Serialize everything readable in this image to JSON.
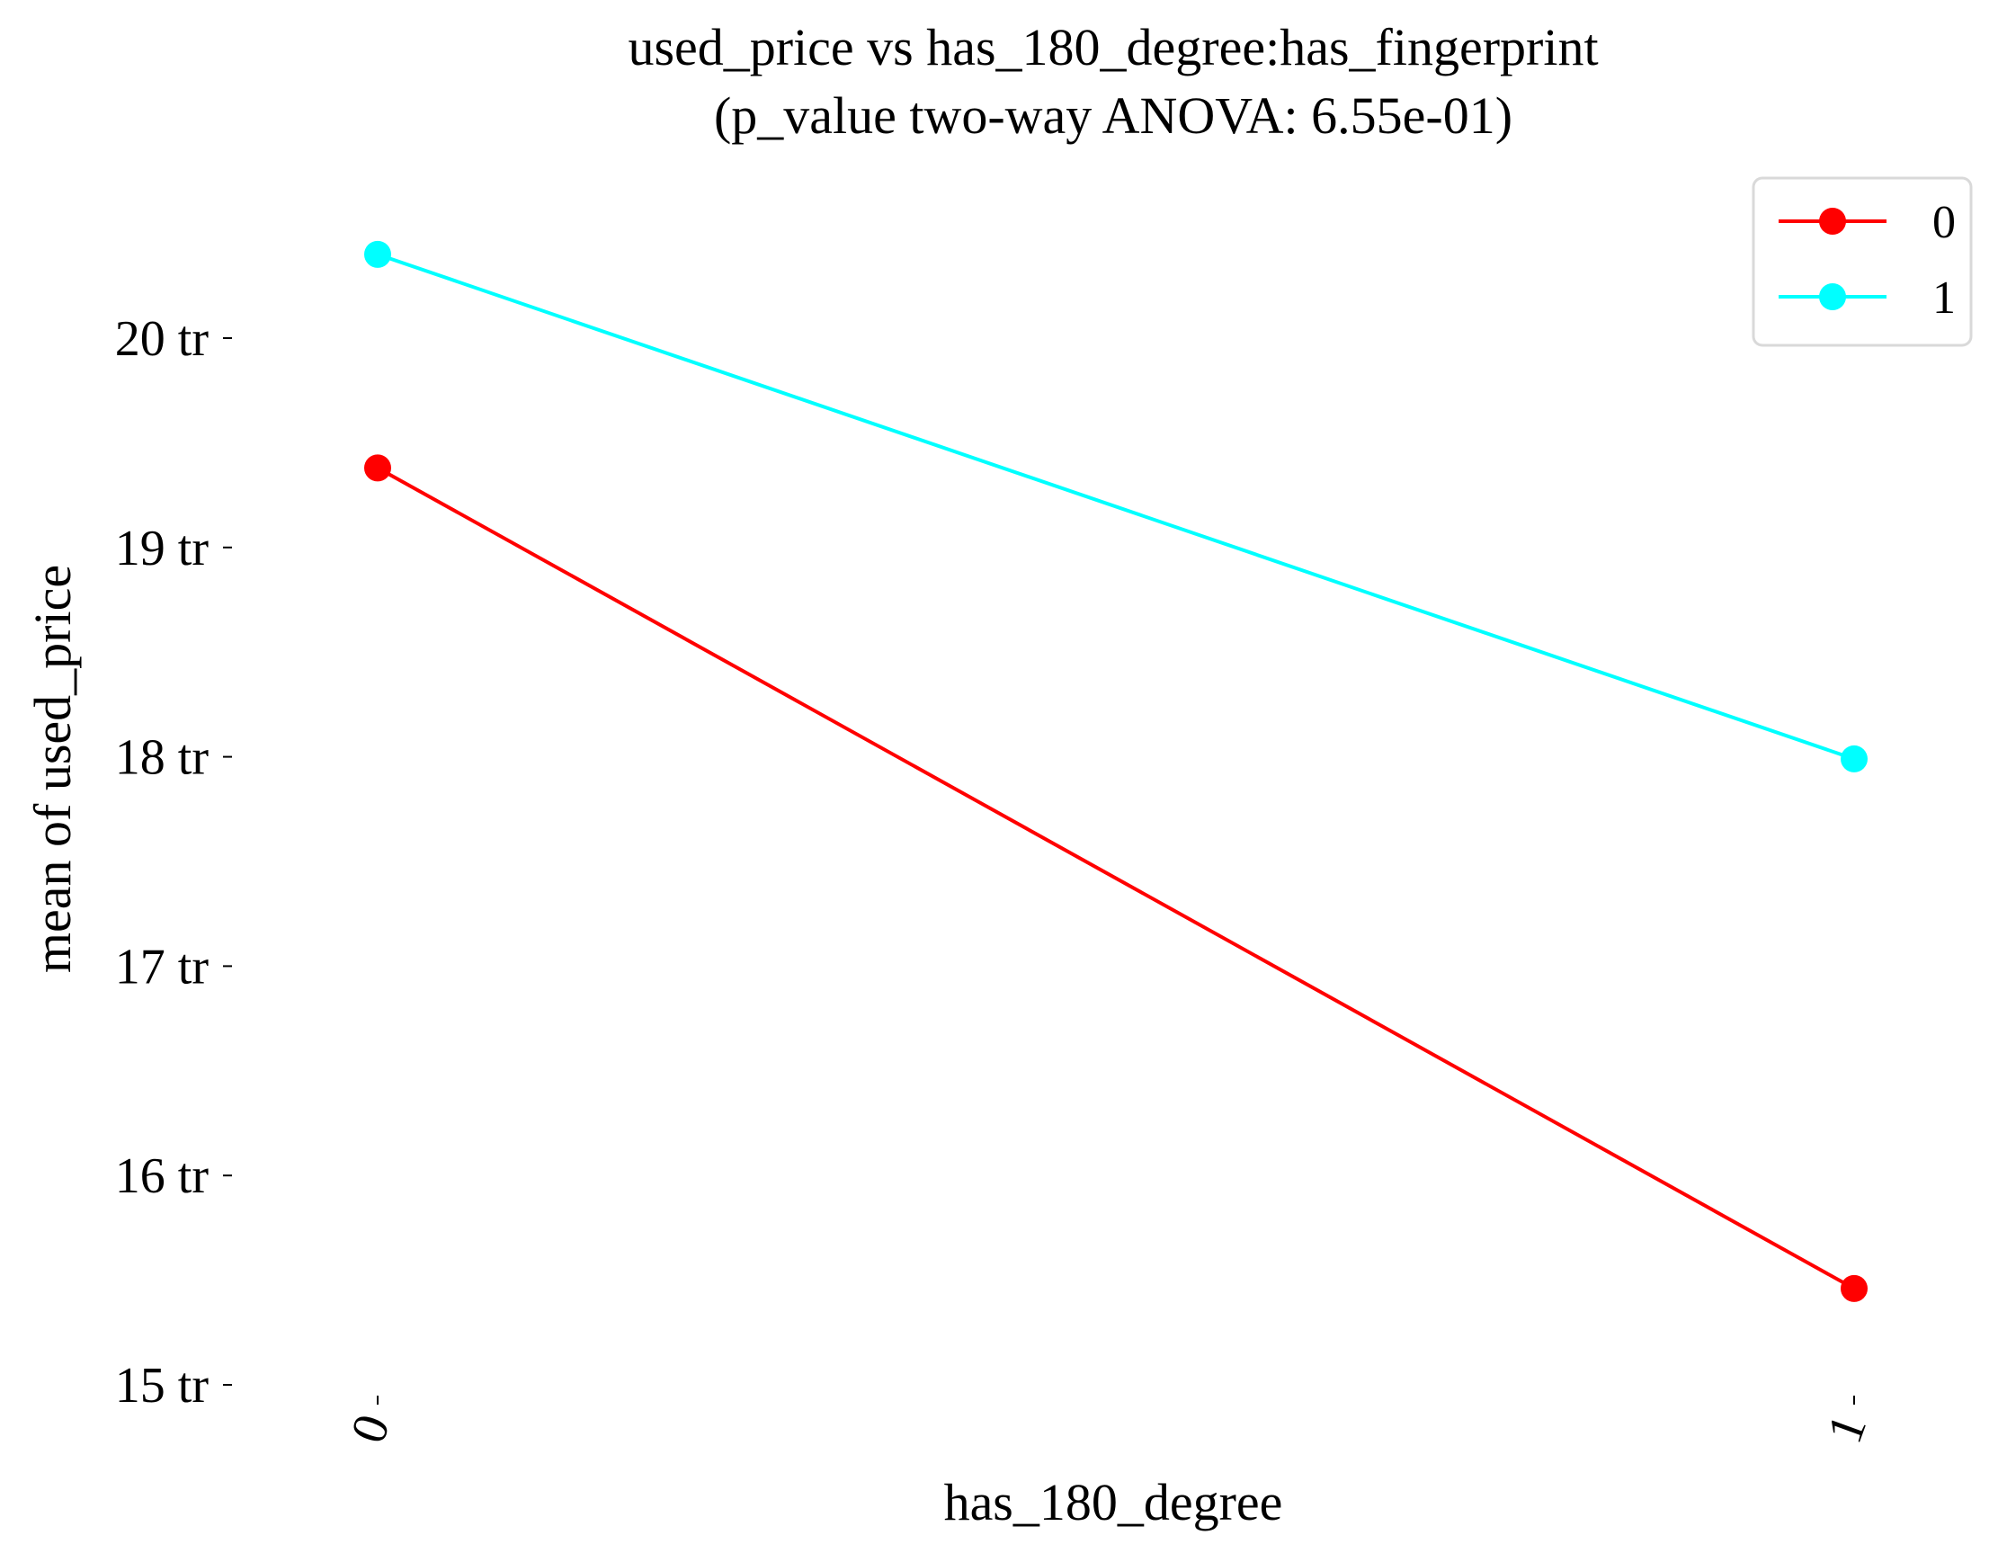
{
  "chart_data": {
    "type": "line",
    "title": "used_price vs has_180_degree:has_fingerprint",
    "subtitle": "(p_value two-way ANOVA: 6.55e-01)",
    "xlabel": "has_180_degree",
    "ylabel": "mean of used_price",
    "categories": [
      "0",
      "1"
    ],
    "y_ticks": [
      {
        "value": 15,
        "label": "15 tr"
      },
      {
        "value": 16,
        "label": "16 tr"
      },
      {
        "value": 17,
        "label": "17 tr"
      },
      {
        "value": 18,
        "label": "18 tr"
      },
      {
        "value": 19,
        "label": "19 tr"
      },
      {
        "value": 20,
        "label": "20 tr"
      }
    ],
    "ylim": [
      15,
      20.5
    ],
    "grid": false,
    "legend_position": "top-right",
    "series": [
      {
        "name": "0",
        "color": "#ff0000",
        "values": [
          19.38,
          15.46
        ]
      },
      {
        "name": "1",
        "color": "#00ffff",
        "values": [
          20.4,
          17.99
        ]
      }
    ]
  }
}
